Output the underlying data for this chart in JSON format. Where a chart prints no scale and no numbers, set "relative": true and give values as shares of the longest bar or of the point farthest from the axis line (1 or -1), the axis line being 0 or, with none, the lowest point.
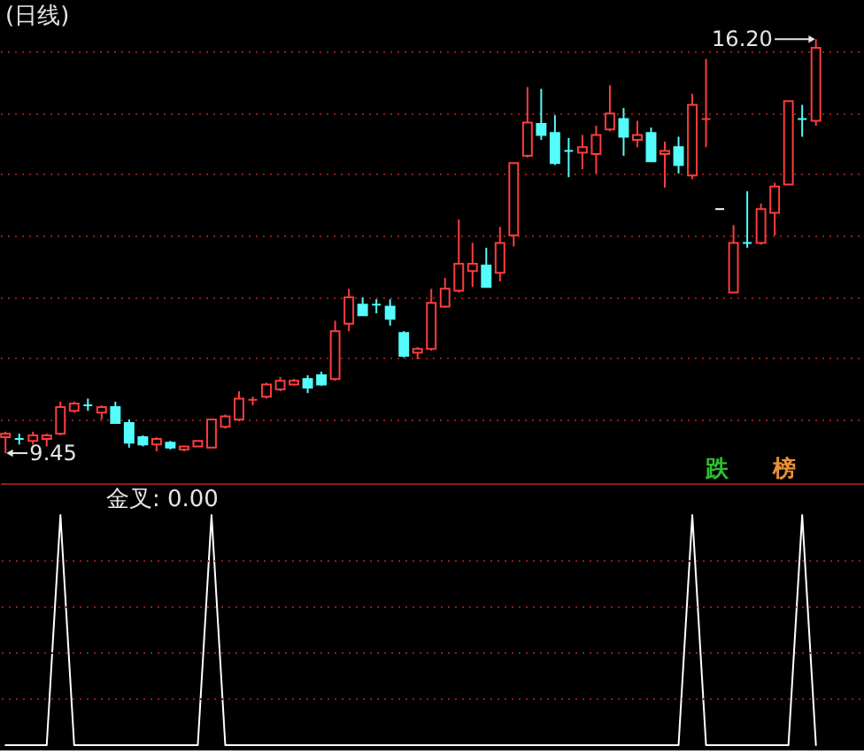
{
  "chart_data": [
    {
      "type": "candlestick",
      "title": "(日线)",
      "categories": [
        null,
        null,
        null,
        null,
        null,
        null,
        null,
        null,
        null,
        null,
        null,
        null,
        null,
        null,
        null,
        null,
        null,
        null,
        null,
        null,
        null,
        null,
        null,
        null,
        null,
        null,
        null,
        null,
        null,
        null,
        null,
        null,
        null,
        null,
        null,
        null,
        null,
        null,
        null,
        null,
        null,
        null,
        null,
        null,
        null,
        null,
        null,
        null,
        null,
        null,
        null,
        null,
        null,
        null,
        null,
        null,
        null,
        null,
        null,
        null
      ],
      "ohlc": [
        [
          9.71,
          9.8,
          9.45,
          9.77
        ],
        [
          9.68,
          9.77,
          9.59,
          9.68
        ],
        [
          9.65,
          9.8,
          9.59,
          9.74
        ],
        [
          9.68,
          9.77,
          9.56,
          9.74
        ],
        [
          9.77,
          10.29,
          9.74,
          10.2
        ],
        [
          10.14,
          10.29,
          10.11,
          10.26
        ],
        [
          10.23,
          10.34,
          10.14,
          10.23
        ],
        [
          10.11,
          10.23,
          10.0,
          10.2
        ],
        [
          10.2,
          10.29,
          9.94,
          9.94
        ],
        [
          9.94,
          10.0,
          9.54,
          9.62
        ],
        [
          9.71,
          9.74,
          9.56,
          9.59
        ],
        [
          9.59,
          9.71,
          9.48,
          9.68
        ],
        [
          9.62,
          9.65,
          9.51,
          9.54
        ],
        [
          9.51,
          9.56,
          9.48,
          9.56
        ],
        [
          9.56,
          9.65,
          9.56,
          9.65
        ],
        [
          9.54,
          10.0,
          9.54,
          10.0
        ],
        [
          9.88,
          10.08,
          9.85,
          10.05
        ],
        [
          10.0,
          10.46,
          9.97,
          10.34
        ],
        [
          10.32,
          10.37,
          10.23,
          10.32
        ],
        [
          10.37,
          10.6,
          10.34,
          10.57
        ],
        [
          10.49,
          10.69,
          10.46,
          10.63
        ],
        [
          10.57,
          10.66,
          10.55,
          10.63
        ],
        [
          10.66,
          10.72,
          10.43,
          10.52
        ],
        [
          10.72,
          10.78,
          10.55,
          10.57
        ],
        [
          10.66,
          11.61,
          10.63,
          11.44
        ],
        [
          11.56,
          12.13,
          11.44,
          11.99
        ],
        [
          11.87,
          11.99,
          11.7,
          11.7
        ],
        [
          11.87,
          11.96,
          11.73,
          11.87
        ],
        [
          11.84,
          11.96,
          11.53,
          11.64
        ],
        [
          11.41,
          11.44,
          11.01,
          11.04
        ],
        [
          11.09,
          11.18,
          10.98,
          11.15
        ],
        [
          11.15,
          12.13,
          11.12,
          11.9
        ],
        [
          11.84,
          12.31,
          11.82,
          12.13
        ],
        [
          12.1,
          13.26,
          12.07,
          12.54
        ],
        [
          12.42,
          12.88,
          12.16,
          12.54
        ],
        [
          12.51,
          12.8,
          12.16,
          12.16
        ],
        [
          12.39,
          13.14,
          12.25,
          12.88
        ],
        [
          13.0,
          14.18,
          12.82,
          14.18
        ],
        [
          14.3,
          15.42,
          14.27,
          14.84
        ],
        [
          14.82,
          15.39,
          14.56,
          14.64
        ],
        [
          14.67,
          14.96,
          14.15,
          14.18
        ],
        [
          14.38,
          14.59,
          13.95,
          14.38
        ],
        [
          14.35,
          14.64,
          14.08,
          14.44
        ],
        [
          14.33,
          14.79,
          14.01,
          14.64
        ],
        [
          14.73,
          15.45,
          14.7,
          14.99
        ],
        [
          14.9,
          15.08,
          14.3,
          14.61
        ],
        [
          14.56,
          14.87,
          14.44,
          14.64
        ],
        [
          14.67,
          14.76,
          14.21,
          14.21
        ],
        [
          14.33,
          14.53,
          13.78,
          14.38
        ],
        [
          14.44,
          14.61,
          14.01,
          14.15
        ],
        [
          13.98,
          15.31,
          13.92,
          15.13
        ],
        [
          14.9,
          15.88,
          14.44,
          14.9
        ],
        [
          13.43,
          13.43,
          13.43,
          13.43
        ],
        [
          12.07,
          13.17,
          12.07,
          12.88
        ],
        [
          12.88,
          13.72,
          12.8,
          12.88
        ],
        [
          12.88,
          13.52,
          12.85,
          13.43
        ],
        [
          13.37,
          13.86,
          13.0,
          13.8
        ],
        [
          13.83,
          15.19,
          13.83,
          15.19
        ],
        [
          14.9,
          15.13,
          14.61,
          14.9
        ],
        [
          14.87,
          16.2,
          14.79,
          16.06
        ]
      ],
      "colors": [
        "#ff3c3c",
        "#54fcfc",
        "#ff3c3c",
        "#ff3c3c",
        "#ff3c3c",
        "#ff3c3c",
        "#54fcfc",
        "#ff3c3c",
        "#54fcfc",
        "#54fcfc",
        "#54fcfc",
        "#ff3c3c",
        "#54fcfc",
        "#ff3c3c",
        "#ff3c3c",
        "#ff3c3c",
        "#ff3c3c",
        "#ff3c3c",
        "#ff3c3c",
        "#ff3c3c",
        "#ff3c3c",
        "#ff3c3c",
        "#54fcfc",
        "#54fcfc",
        "#ff3c3c",
        "#ff3c3c",
        "#54fcfc",
        "#54fcfc",
        "#54fcfc",
        "#54fcfc",
        "#ff3c3c",
        "#ff3c3c",
        "#ff3c3c",
        "#ff3c3c",
        "#ff3c3c",
        "#54fcfc",
        "#ff3c3c",
        "#ff3c3c",
        "#ff3c3c",
        "#54fcfc",
        "#54fcfc",
        "#54fcfc",
        "#ff3c3c",
        "#ff3c3c",
        "#ff3c3c",
        "#54fcfc",
        "#ff3c3c",
        "#54fcfc",
        "#ff3c3c",
        "#54fcfc",
        "#ff3c3c",
        "#ff3c3c",
        "#ffffff",
        "#ff3c3c",
        "#54fcfc",
        "#ff3c3c",
        "#ff3c3c",
        "#ff3c3c",
        "#54fcfc",
        "#ff3c3c"
      ],
      "ylim": [
        8.96,
        16.84
      ],
      "yticks": [
        {
          "value": 10,
          "label": null
        },
        {
          "value": 11,
          "label": null
        },
        {
          "value": 12,
          "label": null
        },
        {
          "value": 13,
          "label": null
        },
        {
          "value": 14,
          "label": null
        },
        {
          "value": 15,
          "label": null
        },
        {
          "value": 16,
          "label": null
        }
      ],
      "grid": "y",
      "tick_labels": false,
      "annotations": [
        "16.20",
        "9.45",
        "跌",
        "榜"
      ]
    },
    {
      "type": "line",
      "title": "金叉: 0.00",
      "categories": [
        null,
        null,
        null,
        null,
        null,
        null,
        null,
        null,
        null,
        null,
        null,
        null,
        null,
        null,
        null,
        null,
        null,
        null,
        null,
        null,
        null,
        null,
        null,
        null,
        null,
        null,
        null,
        null,
        null,
        null,
        null,
        null,
        null,
        null,
        null,
        null,
        null,
        null,
        null,
        null,
        null,
        null,
        null,
        null,
        null,
        null,
        null,
        null,
        null,
        null,
        null,
        null,
        null,
        null,
        null,
        null,
        null,
        null,
        null,
        null
      ],
      "series": [
        {
          "color": "#ffffff",
          "values": [
            0,
            0,
            0,
            0,
            1,
            0,
            0,
            0,
            0,
            0,
            0,
            0,
            0,
            0,
            0,
            1,
            0,
            0,
            0,
            0,
            0,
            0,
            0,
            0,
            0,
            0,
            0,
            0,
            0,
            0,
            0,
            0,
            0,
            0,
            0,
            0,
            0,
            0,
            0,
            0,
            0,
            0,
            0,
            0,
            0,
            0,
            0,
            0,
            0,
            0,
            1,
            0,
            0,
            0,
            0,
            0,
            0,
            0,
            1,
            0
          ]
        }
      ],
      "ref_lines": [
        {
          "axis": "y",
          "value": 0.2,
          "color": "#8c1c1c",
          "line_style": "dotted"
        },
        {
          "axis": "y",
          "value": 0.4,
          "color": "#8c1c1c",
          "line_style": "dotted"
        },
        {
          "axis": "y",
          "value": 0.6,
          "color": "#8c1c1c",
          "line_style": "dotted"
        },
        {
          "axis": "y",
          "value": 0.8,
          "color": "#8c1c1c",
          "line_style": "dotted"
        }
      ],
      "relative": true,
      "tick_labels": false
    }
  ]
}
